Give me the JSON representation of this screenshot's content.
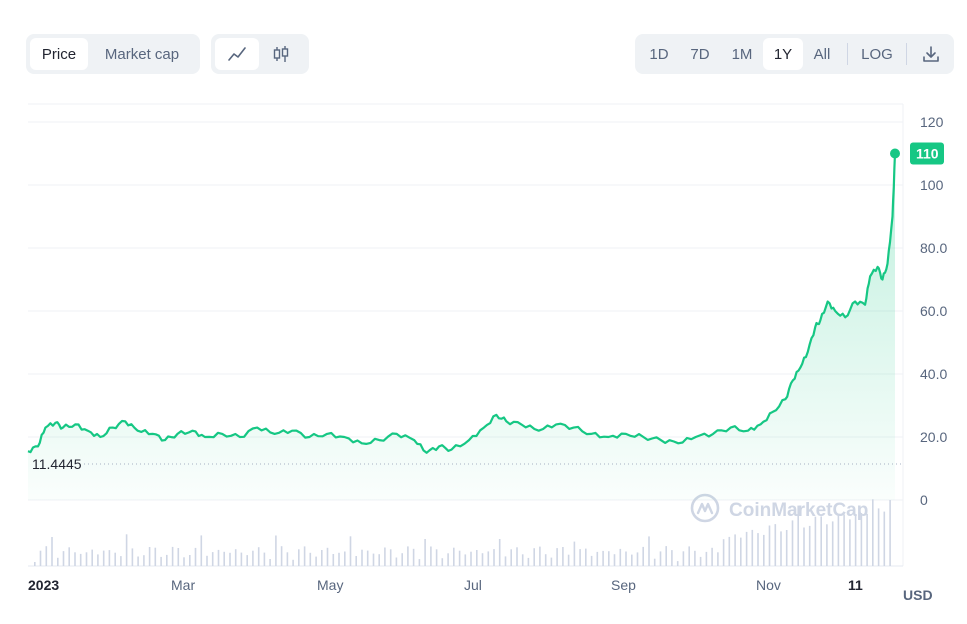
{
  "toolbar": {
    "price_label": "Price",
    "marketcap_label": "Market cap",
    "line_icon": "line-chart-icon",
    "candle_icon": "candlestick-icon",
    "ranges": [
      "1D",
      "7D",
      "1M",
      "1Y",
      "All"
    ],
    "active_range": "1Y",
    "log_label": "LOG",
    "download_icon": "download-icon"
  },
  "watermark": "CoinMarketCap",
  "currency_label": "USD",
  "colors": {
    "line": "#16c784",
    "accent": "#16c784"
  },
  "chart_data": {
    "type": "line",
    "title": "",
    "xlabel": "",
    "ylabel": "",
    "x_tick_labels": [
      "2023",
      "Mar",
      "May",
      "Jul",
      "Sep",
      "Nov",
      "11"
    ],
    "y_tick_labels": [
      "0",
      "20.0",
      "40.0",
      "60.0",
      "80.0",
      "100",
      "120"
    ],
    "ylim": [
      0,
      120
    ],
    "start_reference_label": "11.4445",
    "start_reference_value": 11.4445,
    "current_value_label": "110",
    "current_value": 110,
    "series": [
      {
        "x": [
          "2023-01-01",
          "2023-01-05",
          "2023-01-08",
          "2023-01-12",
          "2023-01-15",
          "2023-01-20",
          "2023-01-25",
          "2023-01-30",
          "2023-02-04",
          "2023-02-09",
          "2023-02-14",
          "2023-02-20",
          "2023-02-25",
          "2023-03-02",
          "2023-03-08",
          "2023-03-13",
          "2023-03-20",
          "2023-03-27",
          "2023-04-03",
          "2023-04-10",
          "2023-04-17",
          "2023-04-24",
          "2023-05-01",
          "2023-05-08",
          "2023-05-15",
          "2023-05-22",
          "2023-05-29",
          "2023-06-05",
          "2023-06-10",
          "2023-06-15",
          "2023-06-20",
          "2023-06-27",
          "2023-07-03",
          "2023-07-08",
          "2023-07-12",
          "2023-07-18",
          "2023-07-25",
          "2023-08-01",
          "2023-08-08",
          "2023-08-15",
          "2023-08-22",
          "2023-08-29",
          "2023-09-05",
          "2023-09-12",
          "2023-09-19",
          "2023-09-26",
          "2023-10-03",
          "2023-10-10",
          "2023-10-17",
          "2023-10-22",
          "2023-10-27",
          "2023-11-01",
          "2023-11-04",
          "2023-11-07",
          "2023-11-10",
          "2023-11-13",
          "2023-11-15",
          "2023-11-18",
          "2023-11-21",
          "2023-11-25",
          "2023-11-29",
          "2023-12-03",
          "2023-12-05",
          "2023-12-08",
          "2023-12-10",
          "2023-12-12",
          "2023-12-14",
          "2023-12-15"
        ],
        "values": [
          15.5,
          17,
          23,
          24.5,
          23,
          24,
          22,
          20,
          23,
          25,
          22,
          21,
          19,
          21,
          22,
          20,
          21,
          20,
          23,
          21,
          22,
          20,
          21,
          20,
          18,
          19,
          21,
          19,
          15,
          17,
          16,
          19,
          23,
          27,
          25,
          24,
          22,
          24,
          23,
          21,
          20,
          21,
          20,
          19,
          18,
          20,
          21,
          23,
          22,
          24,
          28,
          32,
          38,
          42,
          47,
          55,
          57,
          63,
          60,
          58,
          63,
          62,
          71,
          74,
          70,
          75,
          90,
          110
        ]
      }
    ],
    "volume_note": "volume bars shown beneath price line",
    "grid": true,
    "legend": "none"
  }
}
